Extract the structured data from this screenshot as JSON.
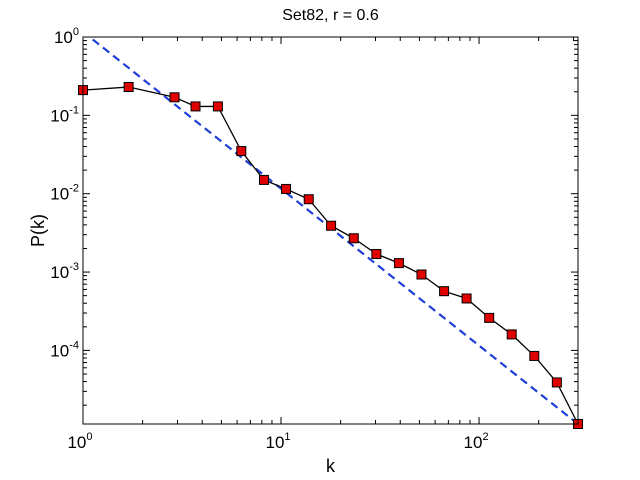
{
  "chart_data": {
    "type": "line",
    "title": "Set82, r = 0.6",
    "xlabel": "k",
    "ylabel": "P(k)",
    "xscale": "log",
    "yscale": "log",
    "xlim": [
      1,
      316
    ],
    "ylim": [
      1.15e-05,
      1
    ],
    "x_ticks": [
      {
        "value": 1,
        "base": "10",
        "exp": "0"
      },
      {
        "value": 10,
        "base": "10",
        "exp": "1"
      },
      {
        "value": 100,
        "base": "10",
        "exp": "2"
      }
    ],
    "y_ticks": [
      {
        "value": 1,
        "base": "10",
        "exp": "0"
      },
      {
        "value": 0.1,
        "base": "10",
        "exp": "-1"
      },
      {
        "value": 0.01,
        "base": "10",
        "exp": "-2"
      },
      {
        "value": 0.001,
        "base": "10",
        "exp": "-3"
      },
      {
        "value": 0.0001,
        "base": "10",
        "exp": "-4"
      }
    ],
    "grid": false,
    "series": [
      {
        "style": "solid",
        "color": "#000000",
        "marker": "square",
        "marker_color": "#e00000",
        "x": [
          1.0,
          1.7,
          2.9,
          3.7,
          4.8,
          6.3,
          8.2,
          10.6,
          13.8,
          17.9,
          23.3,
          30.3,
          39.4,
          51.2,
          66.6,
          86.5,
          112.5,
          146.2,
          190.1,
          247.1,
          316.0
        ],
        "y": [
          0.21,
          0.23,
          0.17,
          0.13,
          0.13,
          0.035,
          0.015,
          0.0115,
          0.0085,
          0.0039,
          0.0027,
          0.0017,
          0.0013,
          0.00093,
          0.00057,
          0.00046,
          0.00026,
          0.00016,
          8.5e-05,
          3.9e-05,
          1.15e-05
        ]
      },
      {
        "style": "dashed",
        "color": "#1f3fd6",
        "x": [
          1.12,
          316
        ],
        "y": [
          0.93,
          1.15e-05
        ]
      }
    ]
  }
}
